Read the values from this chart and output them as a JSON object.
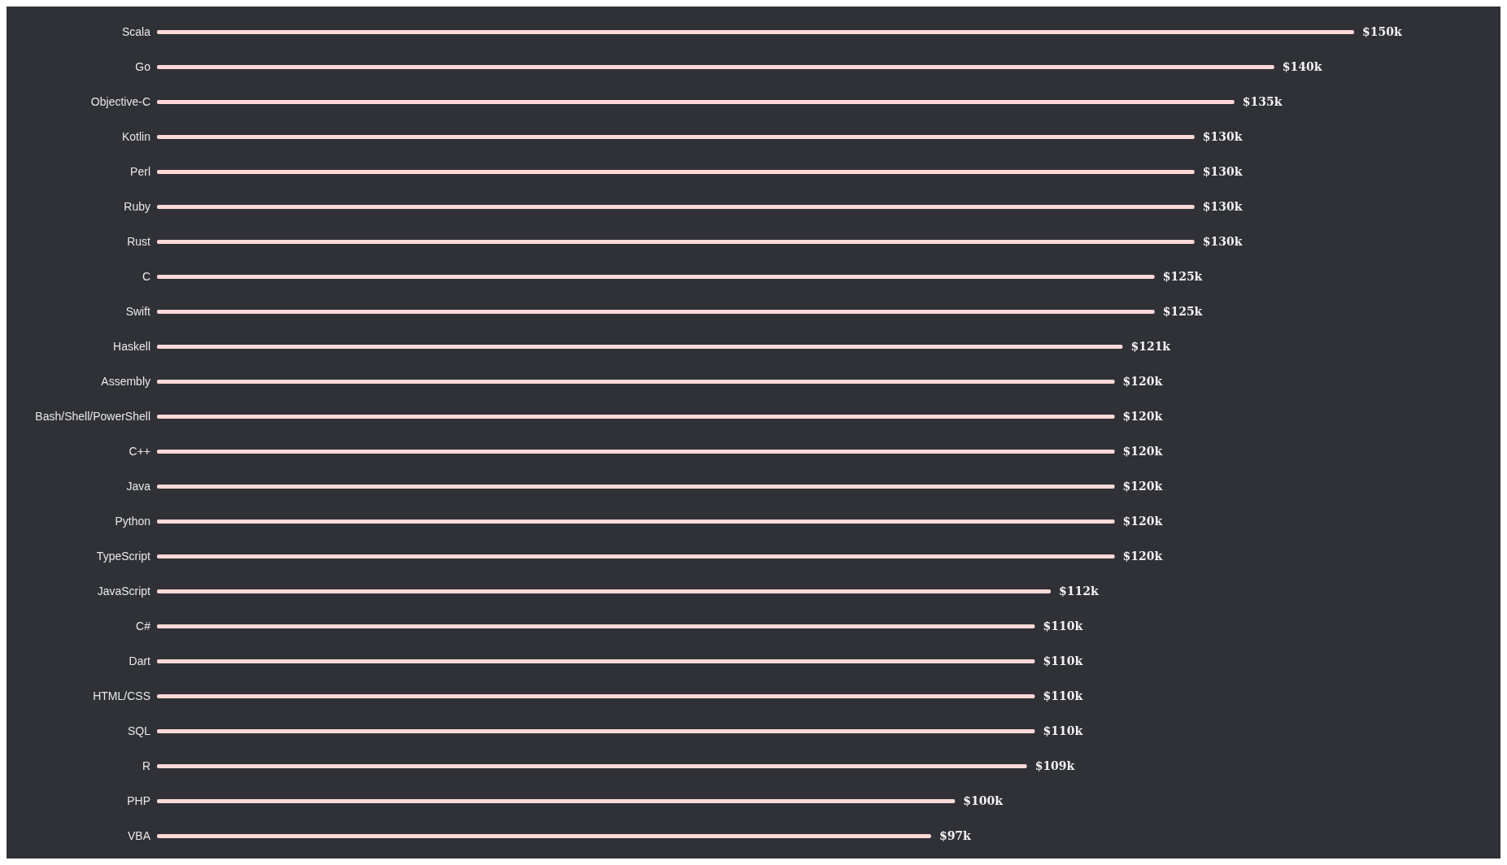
{
  "chart_data": {
    "type": "bar",
    "orientation": "horizontal",
    "categories": [
      "Scala",
      "Go",
      "Objective-C",
      "Kotlin",
      "Perl",
      "Ruby",
      "Rust",
      "C",
      "Swift",
      "Haskell",
      "Assembly",
      "Bash/Shell/PowerShell",
      "C++",
      "Java",
      "Python",
      "TypeScript",
      "JavaScript",
      "C#",
      "Dart",
      "HTML/CSS",
      "SQL",
      "R",
      "PHP",
      "VBA"
    ],
    "values": [
      150,
      140,
      135,
      130,
      130,
      130,
      130,
      125,
      125,
      121,
      120,
      120,
      120,
      120,
      120,
      120,
      112,
      110,
      110,
      110,
      110,
      109,
      100,
      97
    ],
    "value_labels": [
      "$150k",
      "$140k",
      "$135k",
      "$130k",
      "$130k",
      "$130k",
      "$130k",
      "$125k",
      "$125k",
      "$121k",
      "$120k",
      "$120k",
      "$120k",
      "$120k",
      "$120k",
      "$120k",
      "$112k",
      "$110k",
      "$110k",
      "$110k",
      "$110k",
      "$109k",
      "$100k",
      "$97k"
    ],
    "color": "#ffd9d9",
    "grid": false,
    "legend": false
  }
}
